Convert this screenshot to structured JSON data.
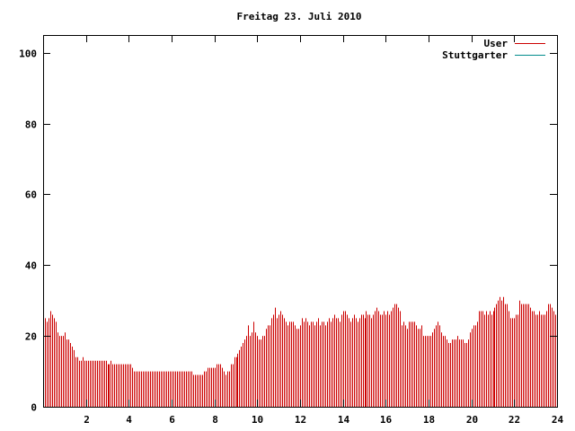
{
  "chart_data": {
    "type": "bar",
    "title": "Freitag 23. Juli 2010",
    "xlabel": "",
    "ylabel": "",
    "xlim": [
      0,
      24
    ],
    "ylim": [
      0,
      105
    ],
    "x_ticks": [
      2,
      4,
      6,
      8,
      10,
      12,
      14,
      16,
      18,
      20,
      22,
      24
    ],
    "y_ticks": [
      0,
      20,
      40,
      60,
      80,
      100
    ],
    "grid": false,
    "legend_position": "top-right",
    "series": [
      {
        "name": "User",
        "color": "#cc0000",
        "interval_minutes": 5,
        "values": [
          25,
          24,
          25,
          27,
          26,
          25,
          24,
          21,
          20,
          20,
          20,
          21,
          19,
          19,
          18,
          17,
          16,
          14,
          14,
          13,
          13,
          14,
          13,
          13,
          13,
          13,
          13,
          13,
          13,
          13,
          13,
          13,
          13,
          13,
          13,
          12,
          12,
          13,
          12,
          12,
          12,
          12,
          12,
          12,
          12,
          12,
          12,
          12,
          12,
          11,
          10,
          10,
          10,
          10,
          10,
          10,
          10,
          10,
          10,
          10,
          10,
          10,
          10,
          10,
          10,
          10,
          10,
          10,
          10,
          10,
          10,
          10,
          10,
          10,
          10,
          10,
          10,
          10,
          10,
          10,
          10,
          10,
          10,
          9,
          9,
          9,
          9,
          9,
          9,
          10,
          10,
          11,
          11,
          11,
          11,
          11,
          12,
          12,
          12,
          11,
          10,
          9,
          10,
          10,
          12,
          12,
          14,
          14,
          15,
          16,
          17,
          18,
          19,
          20,
          23,
          20,
          21,
          24,
          21,
          20,
          19,
          19,
          20,
          20,
          22,
          23,
          23,
          25,
          26,
          28,
          25,
          26,
          27,
          26,
          25,
          24,
          23,
          24,
          24,
          24,
          23,
          22,
          22,
          23,
          25,
          24,
          25,
          24,
          23,
          24,
          24,
          23,
          24,
          25,
          23,
          24,
          24,
          23,
          24,
          25,
          24,
          25,
          26,
          25,
          25,
          24,
          26,
          27,
          27,
          26,
          25,
          24,
          25,
          26,
          25,
          24,
          25,
          26,
          26,
          25,
          27,
          26,
          26,
          25,
          26,
          27,
          28,
          27,
          26,
          26,
          27,
          26,
          27,
          26,
          27,
          28,
          29,
          29,
          28,
          27,
          23,
          24,
          23,
          22,
          24,
          24,
          24,
          24,
          23,
          22,
          22,
          23,
          20,
          20,
          20,
          20,
          20,
          21,
          22,
          23,
          24,
          23,
          21,
          20,
          20,
          19,
          18,
          18,
          19,
          19,
          19,
          20,
          19,
          19,
          19,
          18,
          18,
          19,
          21,
          22,
          23,
          23,
          24,
          27,
          27,
          27,
          26,
          27,
          26,
          27,
          26,
          27,
          28,
          29,
          30,
          31,
          30,
          31,
          29,
          29,
          27,
          25,
          25,
          25,
          26,
          26,
          30,
          29,
          29,
          29,
          29,
          29,
          28,
          27,
          27,
          26,
          26,
          27,
          26,
          26,
          26,
          27,
          29,
          29,
          28,
          27,
          26,
          26,
          26,
          27,
          27,
          27,
          27,
          31,
          25,
          25,
          27
        ]
      },
      {
        "name": "Stuttgarter",
        "color": "#008b8b",
        "values": []
      }
    ]
  }
}
